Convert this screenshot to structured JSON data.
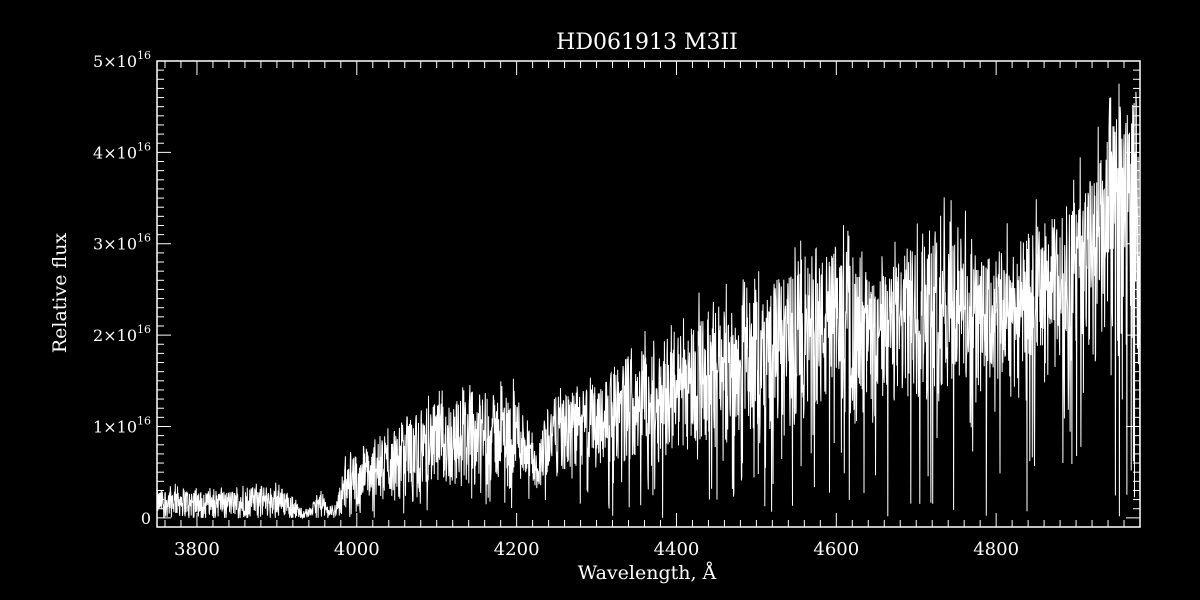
{
  "chart_data": {
    "type": "line",
    "title": "HD061913   M3II",
    "xlabel": "Wavelength, Å",
    "ylabel": "Relative flux",
    "xlim": [
      3750,
      4980
    ],
    "ylim": [
      -1000000000000000.0,
      5e+16
    ],
    "x_ticks": [
      3800,
      4000,
      4200,
      4400,
      4600,
      4800
    ],
    "x_tick_labels": [
      "3800",
      "4000",
      "4200",
      "4400",
      "4600",
      "4800"
    ],
    "y_ticks": [
      0,
      1e+16,
      2e+16,
      3e+16,
      4e+16,
      5e+16
    ],
    "y_tick_labels": [
      {
        "mantissa": "0",
        "exponent": ""
      },
      {
        "mantissa": "1×10",
        "exponent": "16"
      },
      {
        "mantissa": "2×10",
        "exponent": "16"
      },
      {
        "mantissa": "3×10",
        "exponent": "16"
      },
      {
        "mantissa": "4×10",
        "exponent": "16"
      },
      {
        "mantissa": "5×10",
        "exponent": "16"
      }
    ],
    "grid": false,
    "colors": {
      "background": "#000000",
      "foreground": "#ffffff"
    },
    "series": [
      {
        "x": [
          3750,
          3775,
          3800,
          3825,
          3850,
          3875,
          3900,
          3915,
          3930,
          3940,
          3955,
          3965,
          3975,
          3985,
          4000,
          4025,
          4050,
          4075,
          4100,
          4125,
          4150,
          4175,
          4200,
          4215,
          4225,
          4240,
          4260,
          4280,
          4300,
          4320,
          4340,
          4360,
          4380,
          4400,
          4425,
          4450,
          4475,
          4500,
          4525,
          4550,
          4575,
          4600,
          4625,
          4650,
          4675,
          4700,
          4725,
          4750,
          4775,
          4800,
          4825,
          4850,
          4875,
          4900,
          4925,
          4950,
          4975
        ],
        "envelope_low": [
          0.0,
          0.0,
          0.0,
          0.0,
          0.0,
          0.0,
          0.0,
          0.0,
          0.0,
          0.0,
          0.0,
          0.0,
          0.0,
          0.05,
          0.1,
          0.15,
          0.2,
          0.25,
          0.3,
          0.3,
          0.35,
          0.35,
          0.4,
          0.3,
          0.3,
          0.45,
          0.45,
          0.5,
          0.55,
          0.6,
          0.6,
          0.65,
          0.6,
          0.7,
          0.75,
          0.8,
          0.85,
          0.9,
          0.95,
          1.0,
          1.05,
          1.1,
          1.1,
          1.15,
          1.2,
          1.25,
          1.25,
          1.3,
          1.3,
          1.35,
          1.4,
          1.45,
          1.5,
          1.6,
          1.7,
          1.8,
          1.9
        ],
        "envelope_high": [
          0.3,
          0.35,
          0.3,
          0.3,
          0.3,
          0.35,
          0.35,
          0.3,
          0.1,
          0.1,
          0.3,
          0.1,
          0.2,
          0.6,
          0.7,
          0.8,
          1.0,
          1.2,
          1.25,
          1.3,
          1.35,
          1.35,
          1.4,
          1.0,
          0.7,
          1.3,
          1.35,
          1.4,
          1.5,
          1.6,
          1.8,
          1.9,
          1.7,
          2.0,
          2.2,
          2.3,
          2.3,
          2.4,
          2.6,
          2.7,
          2.8,
          3.0,
          2.7,
          2.6,
          2.8,
          3.0,
          3.1,
          3.2,
          2.8,
          2.9,
          3.0,
          3.2,
          3.3,
          3.5,
          3.8,
          4.4,
          4.7
        ],
        "unit_multiplier": 1e+16
      }
    ]
  }
}
